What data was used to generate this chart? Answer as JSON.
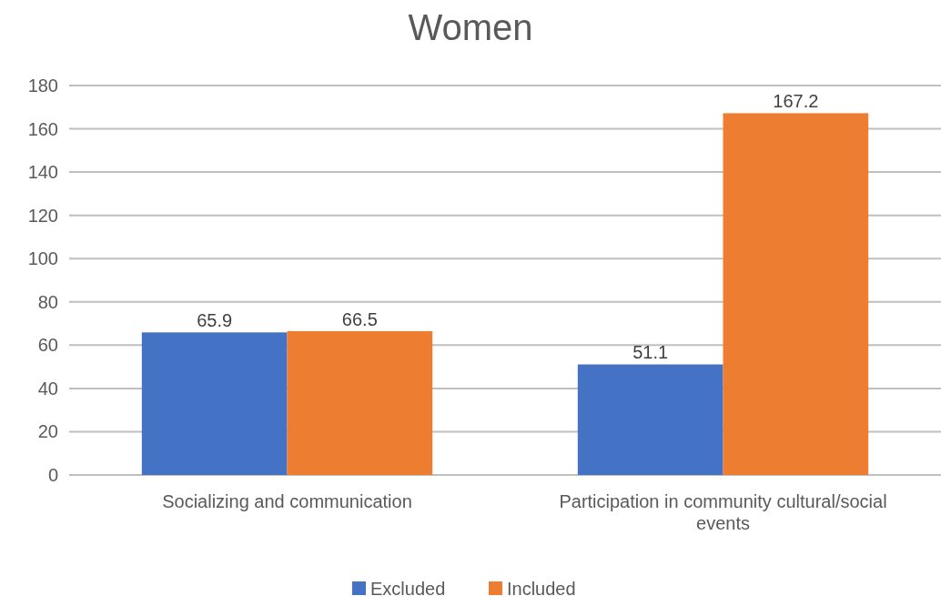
{
  "chart_data": {
    "type": "bar",
    "title": "Women",
    "categories": [
      "Socializing and communication",
      "Participation in community cultural/social events"
    ],
    "series": [
      {
        "name": "Excluded",
        "color": "#4472c4",
        "values": [
          65.9,
          51.1
        ]
      },
      {
        "name": "Included",
        "color": "#ed7d31",
        "values": [
          66.5,
          167.2
        ]
      }
    ],
    "ylim": [
      0,
      180
    ],
    "yticks": [
      0,
      20,
      40,
      60,
      80,
      100,
      120,
      140,
      160,
      180
    ],
    "grid": "y",
    "legend": "bottom",
    "data_labels": true
  }
}
